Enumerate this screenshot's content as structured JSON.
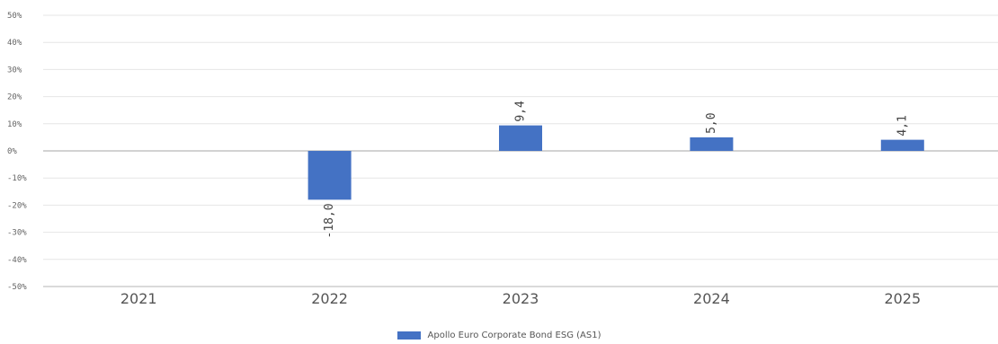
{
  "chart_data": {
    "type": "bar",
    "categories": [
      "2021",
      "2022",
      "2023",
      "2024",
      "2025"
    ],
    "series": [
      {
        "name": "Apollo Euro Corporate Bond ESG (AS1)",
        "values": [
          null,
          -18.0,
          9.4,
          5.0,
          4.1
        ],
        "data_labels": [
          "",
          "-18,0",
          "9,4",
          "5,0",
          "4,1"
        ],
        "color": "#4472C4"
      }
    ],
    "ylim": [
      -50,
      50
    ],
    "yticks": [
      50,
      40,
      30,
      20,
      10,
      0,
      -10,
      -20,
      -30,
      -40,
      -50
    ],
    "ytick_labels": [
      "50%",
      "40%",
      "30%",
      "20%",
      "10%",
      "0%",
      "-10%",
      "-20%",
      "-30%",
      "-40%",
      "-50%"
    ],
    "grid": true,
    "legend_position": "bottom",
    "title": "",
    "xlabel": "",
    "ylabel": ""
  }
}
